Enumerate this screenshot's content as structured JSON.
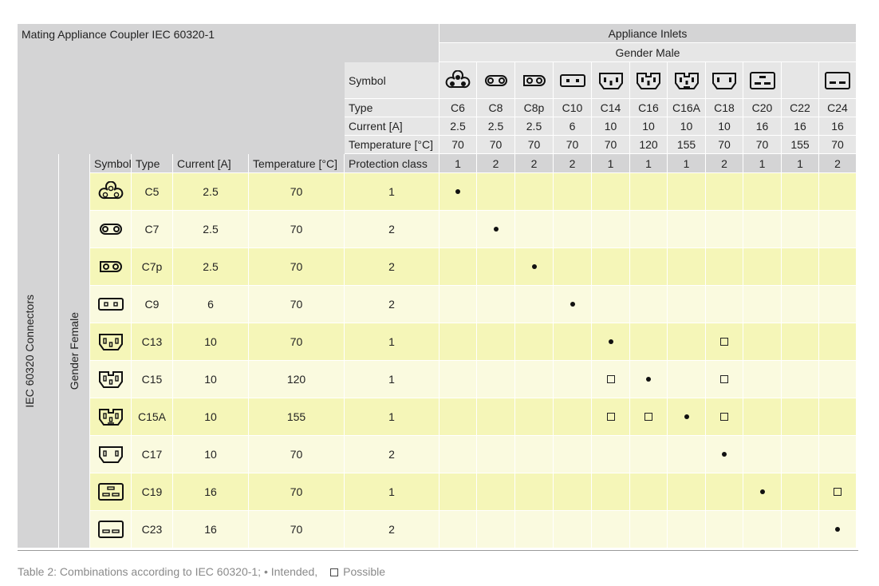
{
  "table": {
    "corner_title": "Mating Appliance Coupler IEC 60320-1",
    "inlets_title": "Appliance Inlets",
    "gender_male": "Gender Male",
    "row_labels": {
      "symbol": "Symbol",
      "type": "Type",
      "current": "Current [A]",
      "temperature": "Temperature [°C]",
      "protection": "Protection class"
    },
    "left_headers": {
      "symbol": "Symbol",
      "type": "Type",
      "current": "Current [A]",
      "temperature": "Temperature [°C]"
    },
    "side_label_1": "IEC 60320 Connectors",
    "side_label_2": "Gender Female",
    "inlets": [
      {
        "type": "C6",
        "current": "2.5",
        "temperature": "70",
        "protection": "1",
        "icon": "clover-3pin-icon"
      },
      {
        "type": "C8",
        "current": "2.5",
        "temperature": "70",
        "protection": "2",
        "icon": "figure8-icon"
      },
      {
        "type": "C8p",
        "current": "2.5",
        "temperature": "70",
        "protection": "2",
        "icon": "figure8-polarized-icon"
      },
      {
        "type": "C10",
        "current": "6",
        "temperature": "70",
        "protection": "2",
        "icon": "rect-2pin-icon"
      },
      {
        "type": "C14",
        "current": "10",
        "temperature": "70",
        "protection": "1",
        "icon": "c14-3pin-icon"
      },
      {
        "type": "C16",
        "current": "10",
        "temperature": "120",
        "protection": "1",
        "icon": "c16-3pin-notched-icon"
      },
      {
        "type": "C16A",
        "current": "10",
        "temperature": "155",
        "protection": "1",
        "icon": "c16a-3pin-notched-icon"
      },
      {
        "type": "C18",
        "current": "10",
        "temperature": "70",
        "protection": "2",
        "icon": "c18-2pin-icon"
      },
      {
        "type": "C20",
        "current": "16",
        "temperature": "70",
        "protection": "1",
        "icon": "c20-3pin-icon"
      },
      {
        "type": "C22",
        "current": "16",
        "temperature": "155",
        "protection": "1",
        "icon": ""
      },
      {
        "type": "C24",
        "current": "16",
        "temperature": "70",
        "protection": "2",
        "icon": "c24-2pin-icon"
      }
    ],
    "connectors": [
      {
        "type": "C5",
        "current": "2.5",
        "temperature": "70",
        "protection": "1",
        "icon": "clover-3hole-icon",
        "marks": [
          "dot",
          "",
          "",
          "",
          "",
          "",
          "",
          "",
          "",
          "",
          ""
        ]
      },
      {
        "type": "C7",
        "current": "2.5",
        "temperature": "70",
        "protection": "2",
        "icon": "figure8-icon",
        "marks": [
          "",
          "dot",
          "",
          "",
          "",
          "",
          "",
          "",
          "",
          "",
          ""
        ]
      },
      {
        "type": "C7p",
        "current": "2.5",
        "temperature": "70",
        "protection": "2",
        "icon": "figure8-polarized-icon",
        "marks": [
          "",
          "",
          "dot",
          "",
          "",
          "",
          "",
          "",
          "",
          "",
          ""
        ]
      },
      {
        "type": "C9",
        "current": "6",
        "temperature": "70",
        "protection": "2",
        "icon": "rect-2hole-icon",
        "marks": [
          "",
          "",
          "",
          "dot",
          "",
          "",
          "",
          "",
          "",
          "",
          ""
        ]
      },
      {
        "type": "C13",
        "current": "10",
        "temperature": "70",
        "protection": "1",
        "icon": "c13-3hole-icon",
        "marks": [
          "",
          "",
          "",
          "",
          "dot",
          "",
          "",
          "sq",
          "",
          "",
          ""
        ]
      },
      {
        "type": "C15",
        "current": "10",
        "temperature": "120",
        "protection": "1",
        "icon": "c15-3hole-notched-icon",
        "marks": [
          "",
          "",
          "",
          "",
          "sq",
          "dot",
          "",
          "sq",
          "",
          "",
          ""
        ]
      },
      {
        "type": "C15A",
        "current": "10",
        "temperature": "155",
        "protection": "1",
        "icon": "c15a-3hole-notched-icon",
        "marks": [
          "",
          "",
          "",
          "",
          "sq",
          "sq",
          "dot",
          "sq",
          "",
          "",
          ""
        ]
      },
      {
        "type": "C17",
        "current": "10",
        "temperature": "70",
        "protection": "2",
        "icon": "c17-2hole-icon",
        "marks": [
          "",
          "",
          "",
          "",
          "",
          "",
          "",
          "dot",
          "",
          "",
          ""
        ]
      },
      {
        "type": "C19",
        "current": "16",
        "temperature": "70",
        "protection": "1",
        "icon": "c19-3hole-icon",
        "marks": [
          "",
          "",
          "",
          "",
          "",
          "",
          "",
          "",
          "dot",
          "",
          "sq"
        ]
      },
      {
        "type": "C23",
        "current": "16",
        "temperature": "70",
        "protection": "2",
        "icon": "c23-2hole-icon",
        "marks": [
          "",
          "",
          "",
          "",
          "",
          "",
          "",
          "",
          "",
          "",
          "dot"
        ]
      }
    ]
  },
  "caption": {
    "text_intended": "Table 2: Combinations according to IEC 60320-1; • Intended,",
    "text_possible": "Possible"
  }
}
